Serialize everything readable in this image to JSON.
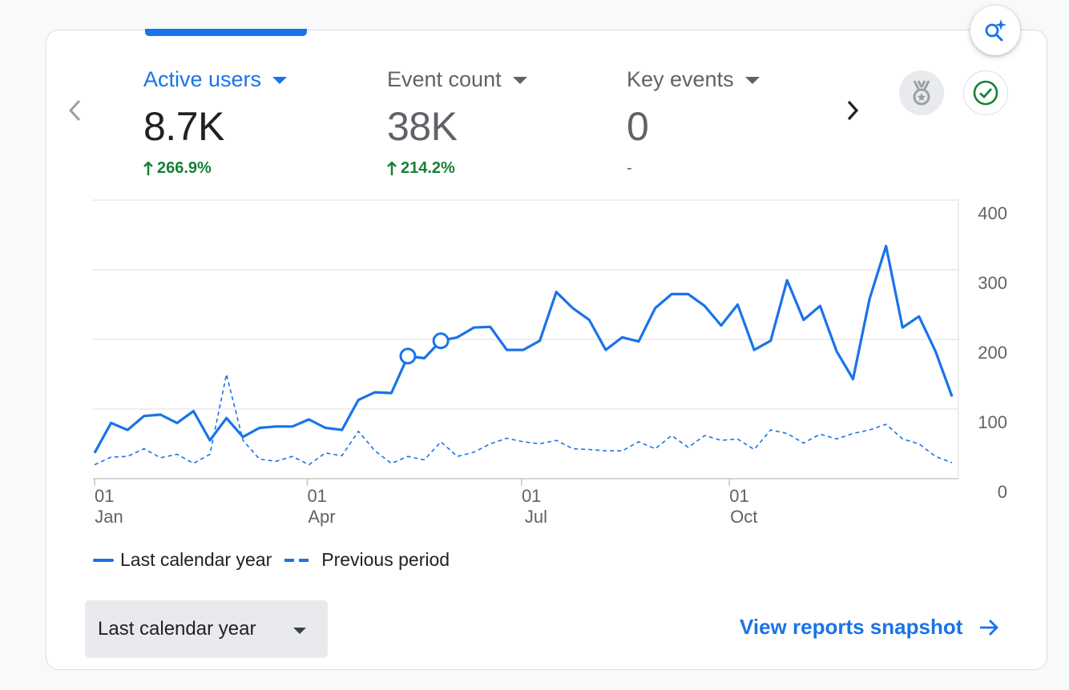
{
  "colors": {
    "accent": "#1a73e8",
    "positive": "#188038",
    "text": "#202124",
    "muted": "#5f6368",
    "grid": "#dadce0"
  },
  "metrics": [
    {
      "label": "Active users",
      "value": "8.7K",
      "change": "266.9%",
      "active": true
    },
    {
      "label": "Event count",
      "value": "38K",
      "change": "214.2%",
      "active": false
    },
    {
      "label": "Key events",
      "value": "0",
      "change": "-",
      "active": false
    }
  ],
  "icons": {
    "prev": "chevron-left-icon",
    "next": "chevron-right-icon",
    "badge": "medal-icon",
    "check": "check-circle-icon",
    "insights": "search-sparkle-icon"
  },
  "legend": {
    "current": "Last calendar year",
    "previous": "Previous period"
  },
  "date_range": {
    "selected": "Last calendar year"
  },
  "view_reports": {
    "label": "View reports snapshot"
  },
  "chart_data": {
    "type": "line",
    "y_axis_position": "right",
    "ylim": [
      0,
      400
    ],
    "y_ticks": [
      "400",
      "300",
      "200",
      "100",
      "0"
    ],
    "grid": true,
    "x_ticks": [
      {
        "week": 0,
        "day": "01",
        "month": "Jan"
      },
      {
        "week": 12.9,
        "day": "01",
        "month": "Apr"
      },
      {
        "week": 25.9,
        "day": "01",
        "month": "Jul"
      },
      {
        "week": 38.5,
        "day": "01",
        "month": "Oct"
      }
    ],
    "series": [
      {
        "name": "Last calendar year",
        "style": "solid",
        "values": [
          37,
          80,
          70,
          90,
          92,
          80,
          97,
          55,
          87,
          60,
          73,
          75,
          75,
          85,
          73,
          70,
          113,
          124,
          123,
          176,
          173,
          198,
          203,
          217,
          218,
          185,
          185,
          198,
          268,
          245,
          228,
          185,
          203,
          197,
          245,
          265,
          265,
          248,
          220,
          250,
          185,
          198,
          285,
          228,
          248,
          183,
          143,
          258,
          334,
          217,
          233,
          183,
          118
        ]
      },
      {
        "name": "Previous period",
        "style": "dashed",
        "values": [
          20,
          31,
          32,
          43,
          30,
          35,
          22,
          35,
          150,
          55,
          28,
          25,
          32,
          20,
          37,
          33,
          68,
          40,
          22,
          32,
          27,
          53,
          32,
          38,
          50,
          58,
          53,
          50,
          55,
          43,
          42,
          40,
          40,
          53,
          43,
          62,
          45,
          62,
          55,
          57,
          42,
          70,
          65,
          51,
          64,
          57,
          65,
          70,
          78,
          57,
          50,
          32,
          23
        ]
      }
    ],
    "highlighted_points": [
      19,
      21
    ]
  }
}
